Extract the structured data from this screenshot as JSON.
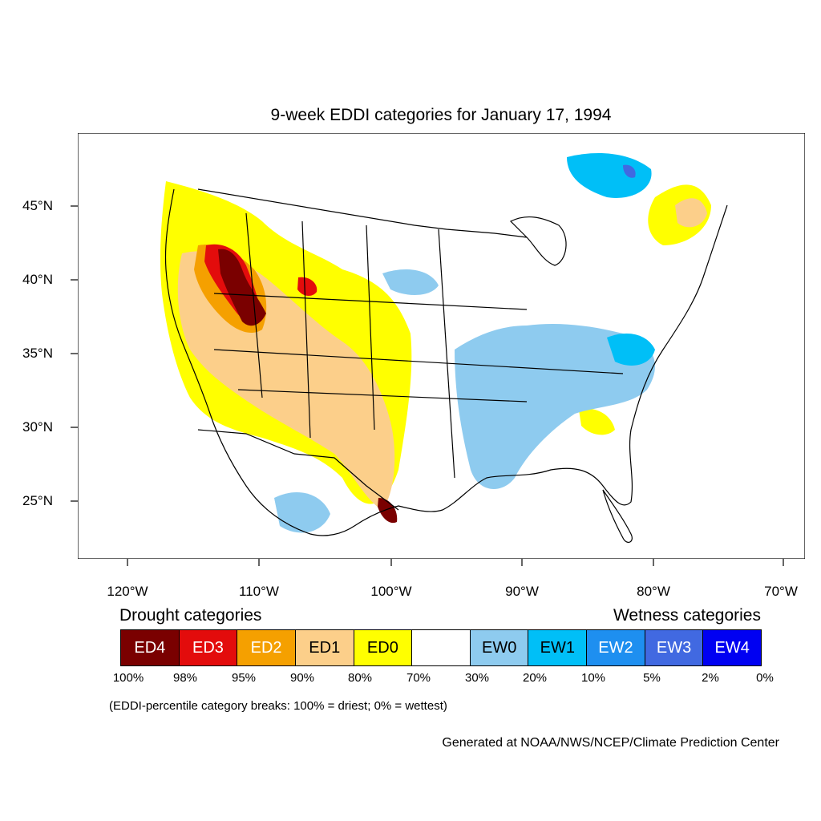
{
  "title": "9-week EDDI categories for January 17, 1994",
  "latitude_labels": [
    "45°N",
    "40°N",
    "35°N",
    "30°N",
    "25°N"
  ],
  "longitude_labels": [
    "120°W",
    "110°W",
    "100°W",
    "90°W",
    "80°W",
    "70°W"
  ],
  "legend": {
    "drought_heading": "Drought categories",
    "wetness_heading": "Wetness categories",
    "categories": [
      {
        "label": "ED4",
        "color": "#7a0000",
        "text_color": "#ffffff"
      },
      {
        "label": "ED3",
        "color": "#e30c0c",
        "text_color": "#ffffff"
      },
      {
        "label": "ED2",
        "color": "#f5a000",
        "text_color": "#ffffff"
      },
      {
        "label": "ED1",
        "color": "#fccf8a",
        "text_color": "#000000"
      },
      {
        "label": "ED0",
        "color": "#ffff00",
        "text_color": "#000000"
      },
      {
        "label": "",
        "color": "#ffffff",
        "text_color": "#000000"
      },
      {
        "label": "EW0",
        "color": "#8ecbef",
        "text_color": "#000000"
      },
      {
        "label": "EW1",
        "color": "#00bff7",
        "text_color": "#000000"
      },
      {
        "label": "EW2",
        "color": "#1e8ff0",
        "text_color": "#ffffff"
      },
      {
        "label": "EW3",
        "color": "#4169e1",
        "text_color": "#ffffff"
      },
      {
        "label": "EW4",
        "color": "#0000f2",
        "text_color": "#ffffff"
      }
    ],
    "percentile_breaks": [
      "100%",
      "98%",
      "95%",
      "90%",
      "80%",
      "70%",
      "30%",
      "20%",
      "10%",
      "5%",
      "2%",
      "0%"
    ]
  },
  "breaks_note": "(EDDI-percentile category breaks: 100% = driest; 0% = wettest)",
  "credit": "Generated at NOAA/NWS/NCEP/Climate Prediction Center"
}
